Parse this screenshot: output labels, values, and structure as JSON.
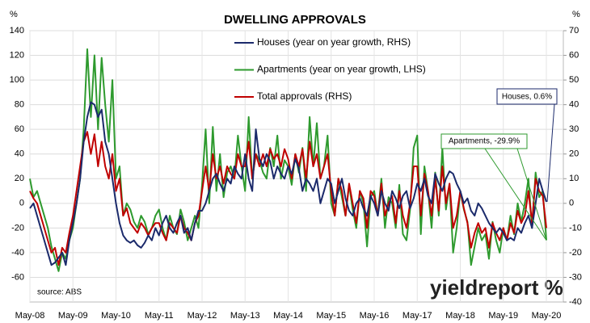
{
  "chart_data": {
    "type": "line",
    "title": "DWELLING APPROVALS",
    "y_label": "%",
    "y2_label": "%",
    "source": "source: ABS",
    "logo": "yieldreport %",
    "categories": [
      "May-08",
      null,
      null,
      null,
      null,
      null,
      null,
      null,
      null,
      null,
      null,
      null,
      "May-09",
      null,
      null,
      null,
      null,
      null,
      null,
      null,
      null,
      null,
      null,
      null,
      "May-10",
      null,
      null,
      null,
      null,
      null,
      null,
      null,
      null,
      null,
      null,
      null,
      "May-11",
      null,
      null,
      null,
      null,
      null,
      null,
      null,
      null,
      null,
      null,
      null,
      "May-12",
      null,
      null,
      null,
      null,
      null,
      null,
      null,
      null,
      null,
      null,
      null,
      "May-13",
      null,
      null,
      null,
      null,
      null,
      null,
      null,
      null,
      null,
      null,
      null,
      "May-14",
      null,
      null,
      null,
      null,
      null,
      null,
      null,
      null,
      null,
      null,
      null,
      "May-15",
      null,
      null,
      null,
      null,
      null,
      null,
      null,
      null,
      null,
      null,
      null,
      "May-16",
      null,
      null,
      null,
      null,
      null,
      null,
      null,
      null,
      null,
      null,
      null,
      "May-17",
      null,
      null,
      null,
      null,
      null,
      null,
      null,
      null,
      null,
      null,
      null,
      "May-18",
      null,
      null,
      null,
      null,
      null,
      null,
      null,
      null,
      null,
      null,
      null,
      "May-19",
      null,
      null,
      null,
      null,
      null,
      null,
      null,
      null,
      null,
      null,
      null,
      "May-20"
    ],
    "series": [
      {
        "name": "Houses (year on year growth, RHS)",
        "color": "#1b2a6b",
        "axis": "y2",
        "values": [
          -2,
          0,
          -5,
          -10,
          -15,
          -20,
          -25,
          -24,
          -22,
          -20,
          -25,
          -15,
          -8,
          0,
          10,
          25,
          35,
          41,
          40,
          35,
          38,
          25,
          20,
          10,
          0,
          -8,
          -13,
          -15,
          -16,
          -15,
          -17,
          -18,
          -16,
          -13,
          -15,
          -10,
          -13,
          -8,
          -5,
          -10,
          -12,
          -8,
          -5,
          -12,
          -10,
          -15,
          -8,
          -3,
          -3,
          0,
          5,
          10,
          12,
          8,
          5,
          10,
          8,
          15,
          12,
          10,
          20,
          10,
          5,
          30,
          18,
          15,
          20,
          17,
          10,
          15,
          12,
          10,
          15,
          12,
          18,
          14,
          5,
          10,
          8,
          5,
          10,
          0,
          5,
          10,
          8,
          0,
          5,
          10,
          2,
          -3,
          -5,
          0,
          2,
          -2,
          -5,
          3,
          0,
          -5,
          5,
          0,
          -3,
          5,
          2,
          -2,
          3,
          5,
          -2,
          2,
          8,
          5,
          10,
          3,
          0,
          12,
          8,
          5,
          10,
          13,
          12,
          8,
          5,
          0,
          2,
          -3,
          -5,
          0,
          -2,
          -5,
          -8,
          -10,
          -12,
          -10,
          -12,
          -15,
          -14,
          -15,
          -10,
          -12,
          -8,
          -5,
          -10,
          0,
          10,
          5,
          0.6
        ]
      },
      {
        "name": "Apartments (year on year growth, LHS)",
        "color": "#2e9a2e",
        "values": [
          20,
          5,
          10,
          0,
          -10,
          -20,
          -35,
          -45,
          -55,
          -40,
          -45,
          -30,
          -20,
          0,
          20,
          60,
          125,
          70,
          120,
          60,
          118,
          80,
          50,
          100,
          20,
          30,
          -10,
          0,
          -5,
          -15,
          -20,
          -10,
          -15,
          -25,
          -20,
          -10,
          -5,
          -20,
          -30,
          -10,
          -20,
          -25,
          -5,
          -15,
          -30,
          -20,
          -10,
          -20,
          15,
          60,
          0,
          62,
          10,
          40,
          5,
          25,
          30,
          20,
          55,
          30,
          10,
          70,
          20,
          40,
          35,
          25,
          20,
          45,
          30,
          55,
          20,
          35,
          30,
          15,
          40,
          25,
          45,
          10,
          70,
          30,
          65,
          20,
          30,
          55,
          0,
          -10,
          20,
          5,
          -10,
          15,
          -5,
          -20,
          10,
          0,
          -35,
          5,
          10,
          -10,
          20,
          -20,
          5,
          0,
          -20,
          15,
          -25,
          -30,
          -5,
          45,
          55,
          -25,
          30,
          10,
          -20,
          25,
          -10,
          45,
          -5,
          15,
          -40,
          -20,
          10,
          -5,
          -15,
          -50,
          -35,
          -20,
          -30,
          -25,
          -45,
          -15,
          -30,
          -40,
          -20,
          -30,
          -10,
          -25,
          0,
          -15,
          0,
          20,
          -20,
          25,
          5,
          10,
          -29.9
        ]
      },
      {
        "name": "Total approvals (RHS)",
        "color": "#c00000",
        "axis": "y2",
        "values": [
          5,
          2,
          0,
          -5,
          -10,
          -15,
          -20,
          -18,
          -25,
          -18,
          -20,
          -12,
          -5,
          5,
          15,
          25,
          29,
          20,
          28,
          15,
          25,
          15,
          10,
          20,
          5,
          10,
          -5,
          -2,
          -8,
          -10,
          -12,
          -8,
          -10,
          -13,
          -10,
          -8,
          -8,
          -12,
          -15,
          -8,
          -10,
          -12,
          -5,
          -10,
          -12,
          -15,
          -8,
          -5,
          5,
          15,
          5,
          20,
          10,
          15,
          8,
          15,
          12,
          10,
          20,
          15,
          15,
          25,
          10,
          20,
          15,
          20,
          15,
          22,
          18,
          20,
          15,
          22,
          18,
          10,
          20,
          15,
          22,
          10,
          25,
          15,
          20,
          10,
          15,
          20,
          5,
          -5,
          10,
          5,
          -5,
          8,
          0,
          -8,
          5,
          2,
          -10,
          5,
          3,
          -5,
          8,
          -5,
          0,
          3,
          -8,
          5,
          -5,
          -10,
          0,
          15,
          15,
          -5,
          12,
          5,
          -5,
          10,
          -3,
          15,
          0,
          8,
          -10,
          -5,
          5,
          -2,
          -8,
          -18,
          -12,
          -8,
          -12,
          -10,
          -18,
          -8,
          -12,
          -15,
          -10,
          -15,
          -8,
          -12,
          -3,
          -8,
          -5,
          5,
          -8,
          10,
          5,
          3,
          -10
        ]
      }
    ],
    "annotations": [
      "Houses, 0.6%",
      "Apartments, -29.9%"
    ],
    "ylim": [
      -80,
      140
    ],
    "yticks": [
      -60,
      -40,
      -20,
      0,
      20,
      40,
      60,
      80,
      100,
      120,
      140
    ],
    "y2lim": [
      -40,
      70
    ],
    "y2ticks": [
      -40,
      -30,
      -20,
      -10,
      0,
      10,
      20,
      30,
      40,
      50,
      60,
      70
    ],
    "grid": true
  }
}
